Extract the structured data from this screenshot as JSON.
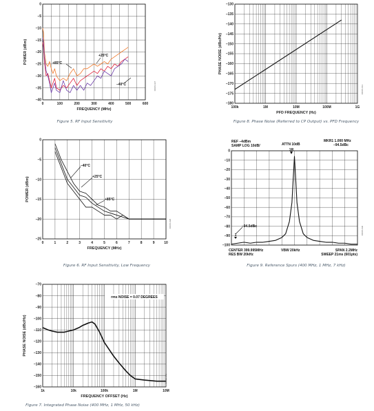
{
  "colors": {
    "orange": "#f0782a",
    "red": "#e0203a",
    "purple": "#6a3aa8",
    "black": "#111111",
    "caption": "#4a5a6a"
  },
  "chart_data": [
    {
      "id": "fig5",
      "type": "line",
      "caption": "Figure 5. RF Input Sensitivity",
      "xlabel": "FREQUENCY (MHz)",
      "ylabel": "POWER (dBm)",
      "xlim": [
        0,
        600
      ],
      "ylim": [
        -40,
        0
      ],
      "xticks": [
        0,
        100,
        200,
        300,
        400,
        500,
        600
      ],
      "yticks": [
        0,
        -5,
        -10,
        -15,
        -20,
        -25,
        -30,
        -35,
        -40
      ],
      "grid": true,
      "code": "06015-027",
      "annotations": [
        "+85°C",
        "+25°C",
        "–40°C"
      ],
      "series": [
        {
          "name": "+25°C",
          "color_key": "orange",
          "x": [
            0,
            5,
            10,
            20,
            30,
            40,
            50,
            60,
            70,
            80,
            100,
            120,
            140,
            160,
            180,
            200,
            220,
            240,
            260,
            280,
            300,
            320,
            340,
            360,
            380,
            400,
            420,
            440,
            460,
            480,
            500
          ],
          "y": [
            -10,
            -12,
            -20,
            -25,
            -26,
            -24,
            -27,
            -29,
            -27,
            -30,
            -32,
            -31,
            -32,
            -29,
            -27,
            -30,
            -29,
            -27,
            -27,
            -26,
            -25,
            -26,
            -25,
            -24,
            -25,
            -23,
            -22,
            -21,
            -20,
            -19,
            -18
          ]
        },
        {
          "name": "+85°C",
          "color_key": "red",
          "x": [
            0,
            5,
            10,
            20,
            30,
            40,
            50,
            60,
            70,
            80,
            100,
            120,
            140,
            160,
            180,
            200,
            220,
            240,
            260,
            280,
            300,
            320,
            340,
            360,
            380,
            400,
            420,
            440,
            460,
            480,
            500
          ],
          "y": [
            -16,
            -18,
            -24,
            -30,
            -29,
            -32,
            -35,
            -33,
            -31,
            -35,
            -36,
            -34,
            -35,
            -33,
            -31,
            -34,
            -32,
            -31,
            -30,
            -29,
            -28,
            -29,
            -27,
            -28,
            -26,
            -27,
            -25,
            -26,
            -24,
            -23,
            -22
          ]
        },
        {
          "name": "–40°C",
          "color_key": "purple",
          "x": [
            0,
            5,
            10,
            20,
            30,
            40,
            50,
            60,
            70,
            80,
            100,
            120,
            140,
            160,
            180,
            200,
            220,
            240,
            260,
            280,
            300,
            320,
            340,
            360,
            380,
            400,
            420,
            440,
            460,
            480,
            500
          ],
          "y": [
            -14,
            -16,
            -22,
            -28,
            -30,
            -33,
            -37,
            -35,
            -33,
            -36,
            -37,
            -32,
            -36,
            -37,
            -34,
            -36,
            -34,
            -36,
            -33,
            -34,
            -32,
            -30,
            -31,
            -28,
            -29,
            -30,
            -27,
            -26,
            -25,
            -23,
            -24
          ]
        }
      ]
    },
    {
      "id": "fig6",
      "type": "line",
      "caption": "Figure 6. RF Input Sensitivity, Low Frequency",
      "xlabel": "FREQUENCY (MHz)",
      "ylabel": "POWER (dBm)",
      "xlim": [
        0,
        10
      ],
      "ylim": [
        -25,
        0
      ],
      "xticks": [
        0,
        1,
        2,
        3,
        4,
        5,
        6,
        7,
        8,
        9,
        10
      ],
      "yticks": [
        0,
        -5,
        -10,
        -15,
        -20,
        -25
      ],
      "grid": true,
      "code": "06015-028",
      "annotations": [
        "–40°C",
        "+25°C",
        "+85°C"
      ],
      "series": [
        {
          "name": "–40°C",
          "color_key": "black",
          "x": [
            1,
            1.5,
            2,
            2.5,
            3,
            3.5,
            4,
            4.5,
            5,
            5.5,
            6,
            6.5,
            7,
            7.5,
            8,
            10
          ],
          "y": [
            -1,
            -5,
            -8,
            -11,
            -13,
            -13.5,
            -15,
            -16.5,
            -17,
            -18,
            -18,
            -19,
            -20,
            -20,
            -20,
            -20
          ]
        },
        {
          "name": "+25°C",
          "color_key": "black",
          "x": [
            1,
            1.5,
            2,
            2.5,
            3,
            3.5,
            4,
            4.5,
            5,
            5.5,
            6,
            6.5,
            7,
            7.5,
            8,
            10
          ],
          "y": [
            -2,
            -6,
            -10,
            -12,
            -14,
            -14.5,
            -16,
            -17,
            -18,
            -18.5,
            -19,
            -19.5,
            -20,
            -20,
            -20,
            -20
          ]
        },
        {
          "name": "+85°C",
          "color_key": "black",
          "x": [
            1,
            1.5,
            2,
            2.5,
            3,
            3.5,
            4,
            4.5,
            5,
            5.5,
            6,
            6.5,
            7,
            7.5,
            8,
            10
          ],
          "y": [
            -3,
            -7,
            -11,
            -13,
            -15,
            -17,
            -17,
            -18,
            -19,
            -19,
            -20,
            -19,
            -20,
            -20,
            -20,
            -20
          ]
        }
      ]
    },
    {
      "id": "fig7",
      "type": "line",
      "caption": "Figure 7. Integrated Phase Noise (400 MHz, 1 MHz, 50 kHz)",
      "xlabel": "FREQUENCY OFFSET (Hz)",
      "ylabel": "PHASE NOISE (dBc/Hz)",
      "xscale": "log",
      "xlim": [
        1000,
        10000000
      ],
      "ylim": [
        -160,
        -70
      ],
      "xticks": [
        1000,
        10000,
        100000,
        1000000,
        10000000
      ],
      "xticklabels": [
        "1k",
        "10k",
        "100k",
        "1M",
        "10M"
      ],
      "yticks": [
        -70,
        -80,
        -90,
        -100,
        -110,
        -120,
        -130,
        -140,
        -150,
        -160
      ],
      "grid": true,
      "code": "06015-031",
      "annotation": "rms NOISE = 0.07 DEGREES",
      "series": [
        {
          "name": "",
          "color_key": "black",
          "x": [
            1000,
            1500,
            2000,
            3000,
            5000,
            7000,
            10000,
            15000,
            20000,
            30000,
            40000,
            50000,
            70000,
            100000,
            150000,
            200000,
            300000,
            500000,
            700000,
            1000000,
            2000000,
            5000000,
            10000000
          ],
          "y": [
            -108,
            -110,
            -111,
            -112,
            -112,
            -111,
            -110,
            -108,
            -106,
            -104,
            -103,
            -105,
            -112,
            -121,
            -128,
            -133,
            -139,
            -146,
            -150,
            -153,
            -154,
            -155,
            -155
          ]
        }
      ]
    },
    {
      "id": "fig8",
      "type": "line",
      "caption": "Figure 8. Phase Noise (Referred to CP Output) vs. PFD Frequency",
      "xlabel": "PFD FREQUENCY (Hz)",
      "ylabel": "PHASE NOISE (dBc/Hz)",
      "xscale": "log",
      "xlim": [
        100000,
        1000000000
      ],
      "ylim": [
        -180,
        -130
      ],
      "xticks": [
        100000,
        1000000,
        10000000,
        100000000,
        1000000000
      ],
      "xticklabels": [
        "100k",
        "1M",
        "10M",
        "100M",
        "1G"
      ],
      "yticks": [
        -130,
        -135,
        -140,
        -145,
        -150,
        -155,
        -160,
        -165,
        -170,
        -175,
        -180
      ],
      "grid": true,
      "code": "06015-013",
      "series": [
        {
          "name": "",
          "color_key": "black",
          "x": [
            100000,
            300000000
          ],
          "y": [
            -173,
            -138
          ]
        }
      ]
    },
    {
      "id": "fig9",
      "type": "line",
      "caption": "Figure 9. Reference Spurs (400 MHz, 1 MHz, 7 kHz)",
      "xlim": [
        399.995,
        400.005
      ],
      "ylim": [
        -100,
        0
      ],
      "yticks": [
        0,
        -10,
        -20,
        -30,
        -40,
        -50,
        -60,
        -70,
        -80,
        -90,
        -100
      ],
      "grid": true,
      "code": "06015-030",
      "header_left": [
        "REF –4dBm",
        "SAMP LOG 10dB/"
      ],
      "header_mid": "ATTN 10dB",
      "header_right": [
        "MKR1 1.000 MHz",
        "–94.5dBc"
      ],
      "marker_label": "1R",
      "spur_label": "–94.5dBc",
      "spur_marker": "1",
      "footer_left": [
        "CENTER 399.995MHz",
        "RES BW 20kHz"
      ],
      "footer_mid": "VBW 20kHz",
      "footer_right": [
        "SPAN 2.2MHz",
        "SWEEP 21ms (601pts)"
      ],
      "series": [
        {
          "name": "",
          "color_key": "black",
          "x": [
            399.995,
            399.9955,
            399.996,
            399.9965,
            399.997,
            399.9975,
            399.998,
            399.9985,
            399.999,
            399.9993,
            399.9996,
            399.9998,
            399.9999,
            400.0,
            400.0001,
            400.0002,
            400.0004,
            400.0007,
            400.001,
            400.0015,
            400.002,
            400.0025,
            400.003,
            400.0035,
            400.004,
            400.0045,
            400.005
          ],
          "y": [
            -99,
            -98,
            -97,
            -98,
            -97,
            -97,
            -96,
            -95,
            -92,
            -88,
            -75,
            -55,
            -30,
            -6,
            -30,
            -55,
            -75,
            -88,
            -92,
            -95,
            -96,
            -97,
            -97,
            -98,
            -98,
            -99,
            -99
          ]
        }
      ]
    }
  ]
}
